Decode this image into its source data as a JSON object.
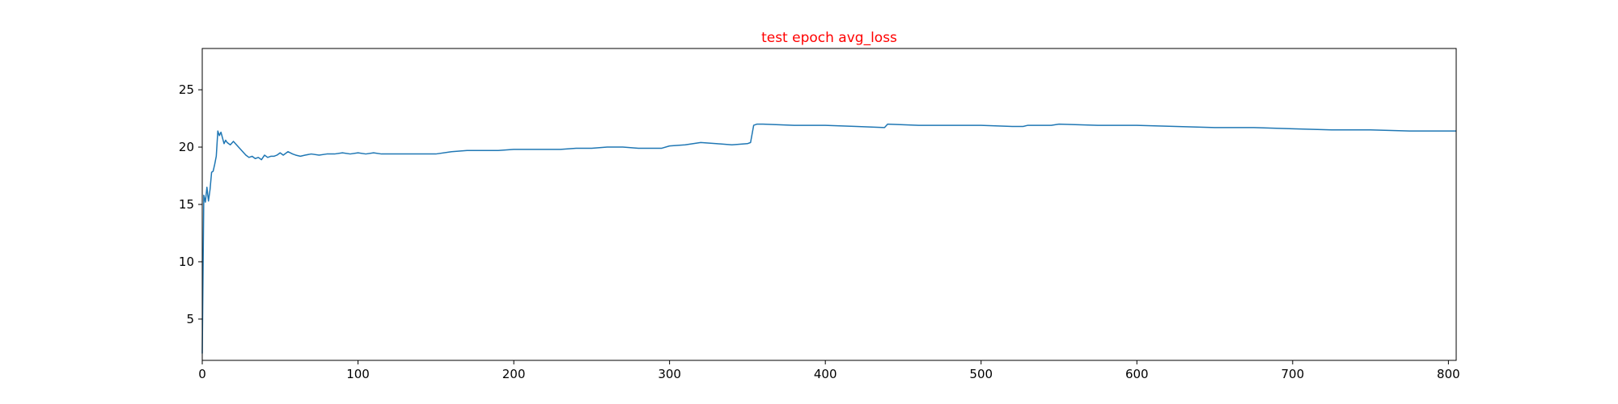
{
  "chart_data": {
    "type": "line",
    "title": "test epoch avg_loss",
    "xlabel": "",
    "ylabel": "",
    "xlim": [
      0,
      805
    ],
    "ylim": [
      1.4,
      28.6
    ],
    "xticks": [
      0,
      100,
      200,
      300,
      400,
      500,
      600,
      700,
      800
    ],
    "yticks": [
      5,
      10,
      15,
      20,
      25
    ],
    "grid": false,
    "series": [
      {
        "color": "#1f77b4",
        "x": [
          0,
          1,
          2,
          3,
          4,
          5,
          6,
          7,
          8,
          9,
          10,
          11,
          12,
          13,
          14,
          15,
          16,
          18,
          20,
          22,
          24,
          26,
          28,
          30,
          32,
          34,
          36,
          38,
          40,
          42,
          44,
          46,
          48,
          50,
          52,
          55,
          58,
          60,
          63,
          66,
          70,
          75,
          80,
          85,
          90,
          95,
          100,
          105,
          110,
          115,
          120,
          130,
          140,
          150,
          160,
          170,
          180,
          190,
          200,
          210,
          220,
          230,
          240,
          250,
          260,
          270,
          280,
          290,
          295,
          300,
          310,
          320,
          330,
          340,
          350,
          352,
          354,
          356,
          360,
          380,
          400,
          420,
          438,
          440,
          460,
          480,
          500,
          520,
          527,
          530,
          540,
          545,
          550,
          575,
          600,
          625,
          650,
          675,
          700,
          725,
          750,
          775,
          805
        ],
        "y": [
          2.0,
          15.8,
          15.2,
          16.5,
          15.3,
          16.3,
          17.8,
          17.9,
          18.5,
          19.2,
          21.4,
          21.0,
          21.3,
          20.8,
          20.3,
          20.6,
          20.4,
          20.2,
          20.5,
          20.2,
          19.9,
          19.6,
          19.3,
          19.1,
          19.2,
          19.0,
          19.1,
          18.9,
          19.3,
          19.1,
          19.2,
          19.2,
          19.3,
          19.5,
          19.3,
          19.6,
          19.4,
          19.3,
          19.2,
          19.3,
          19.4,
          19.3,
          19.4,
          19.4,
          19.5,
          19.4,
          19.5,
          19.4,
          19.5,
          19.4,
          19.4,
          19.4,
          19.4,
          19.4,
          19.6,
          19.7,
          19.7,
          19.7,
          19.8,
          19.8,
          19.8,
          19.8,
          19.9,
          19.9,
          20.0,
          20.0,
          19.9,
          19.9,
          19.9,
          20.1,
          20.2,
          20.4,
          20.3,
          20.2,
          20.3,
          20.4,
          21.9,
          22.0,
          22.0,
          21.9,
          21.9,
          21.8,
          21.7,
          22.0,
          21.9,
          21.9,
          21.9,
          21.8,
          21.8,
          21.9,
          21.9,
          21.9,
          22.0,
          21.9,
          21.9,
          21.8,
          21.7,
          21.7,
          21.6,
          21.5,
          21.5,
          21.4,
          21.4
        ]
      }
    ]
  },
  "colors": {
    "title": "#ff0000",
    "axes": "#000000",
    "line": "#1f77b4",
    "background": "#ffffff"
  }
}
